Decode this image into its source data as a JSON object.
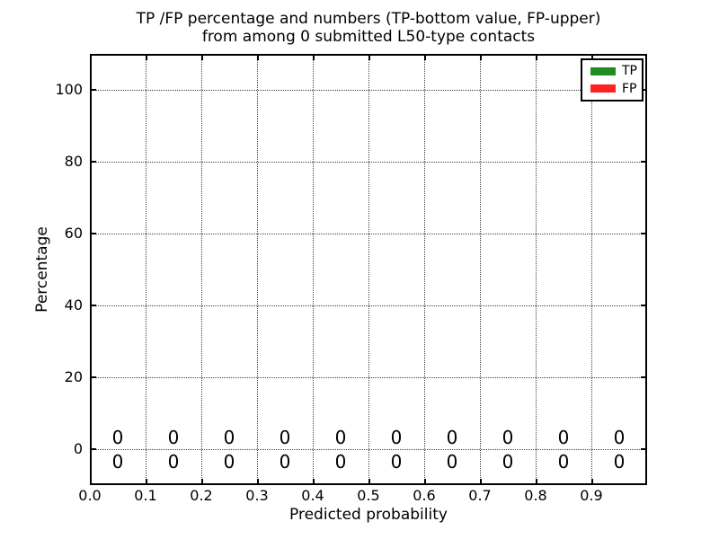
{
  "figure": {
    "title_line1": "TP /FP percentage and numbers (TP-bottom value, FP-upper)",
    "title_line2": "from among 0 submitted L50-type contacts",
    "xlabel": "Predicted probability",
    "ylabel": "Percentage"
  },
  "legend": {
    "position": "upper-right",
    "items": [
      {
        "label": "TP",
        "color": "#228b22"
      },
      {
        "label": "FP",
        "color": "#ff2222"
      }
    ]
  },
  "chart_data": {
    "type": "bar",
    "title": "TP /FP percentage and numbers (TP-bottom value, FP-upper) from among 0 submitted L50-type contacts",
    "xlabel": "Predicted probability",
    "ylabel": "Percentage",
    "xlim": [
      0.0,
      1.0
    ],
    "ylim": [
      -10,
      110
    ],
    "xticks": [
      "0.0",
      "0.1",
      "0.2",
      "0.3",
      "0.4",
      "0.5",
      "0.6",
      "0.7",
      "0.8",
      "0.9"
    ],
    "yticks": [
      0,
      20,
      40,
      60,
      80,
      100
    ],
    "grid": true,
    "grid_style": "dotted",
    "legend_position": "upper right",
    "bin_centers": [
      0.05,
      0.15,
      0.25,
      0.35,
      0.45,
      0.55,
      0.65,
      0.75,
      0.85,
      0.95
    ],
    "series": [
      {
        "name": "TP",
        "color": "#228b22",
        "values": [
          0,
          0,
          0,
          0,
          0,
          0,
          0,
          0,
          0,
          0
        ],
        "annotation_row": "bottom"
      },
      {
        "name": "FP",
        "color": "#ff2222",
        "values": [
          0,
          0,
          0,
          0,
          0,
          0,
          0,
          0,
          0,
          0
        ],
        "annotation_row": "upper"
      }
    ]
  }
}
